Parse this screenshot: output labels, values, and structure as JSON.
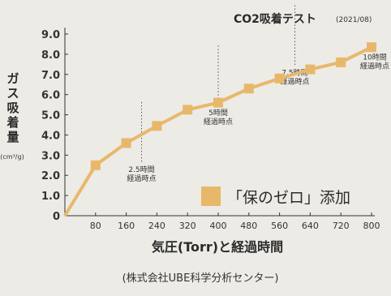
{
  "chart_data": {
    "type": "line",
    "title": "CO2吸着テスト",
    "subtitle": "(2021/08)",
    "ylabel": "ガス吸着量",
    "yunit": "(cm³/g)",
    "xlabel": "気圧(Torr)と経過時間",
    "source": "(株式会社UBE科学分析センター)",
    "x_ticks": [
      80,
      160,
      240,
      320,
      400,
      480,
      560,
      640,
      720,
      800
    ],
    "y_ticks": [
      "0",
      "1.0",
      "2.0",
      "3.0",
      "4.0",
      "5.0",
      "6.0",
      "7.0",
      "8.0",
      "9.0"
    ],
    "xlim": [
      0,
      800
    ],
    "ylim": [
      0,
      9
    ],
    "series": [
      {
        "name": "「保のゼロ」添加",
        "color": "#e8b86a",
        "x": [
          0,
          80,
          160,
          240,
          320,
          400,
          480,
          560,
          640,
          720,
          800
        ],
        "y": [
          0,
          2.5,
          3.6,
          4.45,
          5.25,
          5.6,
          6.3,
          6.8,
          7.25,
          7.6,
          8.35
        ]
      }
    ],
    "annotations": [
      {
        "x": 200,
        "y_top": 3.7,
        "lines": [
          "2.5時間",
          "経過時点"
        ]
      },
      {
        "x": 400,
        "y_top": 6.5,
        "lines": [
          "5時間",
          "経過時点"
        ]
      },
      {
        "x": 600,
        "y_top": 8.5,
        "lines": [
          "7.5時間",
          "経過時点"
        ]
      },
      {
        "x": 800,
        "y_top": 8.3,
        "lines": [
          "10時間",
          "経過時点"
        ]
      }
    ],
    "grid": false,
    "legend_position": "bottom-right"
  }
}
